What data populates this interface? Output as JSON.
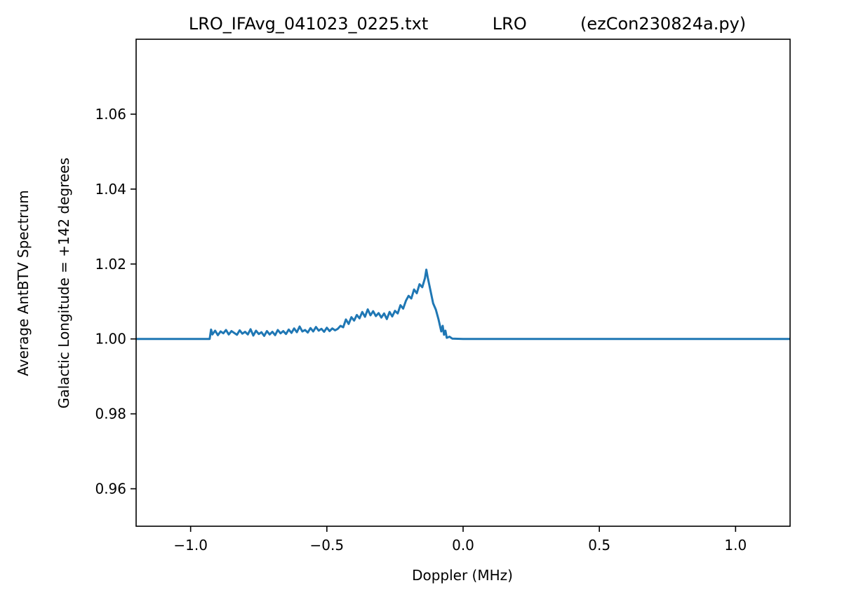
{
  "chart_data": {
    "type": "line",
    "title": "LRO_IFAvg_041023_0225.txt            LRO          (ezCon230824a.py)",
    "xlabel": "Doppler (MHz)",
    "ylabel_outer": "Average AntBTV Spectrum",
    "ylabel_inner": "Galactic Longitude = +142 degrees",
    "xlim": [
      -1.2,
      1.2
    ],
    "ylim": [
      0.95,
      1.08
    ],
    "xticks": [
      {
        "value": -1.0,
        "label": "−1.0"
      },
      {
        "value": -0.5,
        "label": "−0.5"
      },
      {
        "value": 0.0,
        "label": "0.0"
      },
      {
        "value": 0.5,
        "label": "0.5"
      },
      {
        "value": 1.0,
        "label": "1.0"
      }
    ],
    "yticks": [
      {
        "value": 0.96,
        "label": "0.96"
      },
      {
        "value": 0.98,
        "label": "0.98"
      },
      {
        "value": 1.0,
        "label": "1.00"
      },
      {
        "value": 1.02,
        "label": "1.02"
      },
      {
        "value": 1.04,
        "label": "1.04"
      },
      {
        "value": 1.06,
        "label": "1.06"
      }
    ],
    "grid": false,
    "series": [
      {
        "color": "#1f77b4",
        "x": [
          -1.2,
          -0.93,
          -0.925,
          -0.92,
          -0.91,
          -0.9,
          -0.89,
          -0.88,
          -0.87,
          -0.86,
          -0.85,
          -0.84,
          -0.83,
          -0.82,
          -0.81,
          -0.8,
          -0.79,
          -0.78,
          -0.77,
          -0.76,
          -0.75,
          -0.74,
          -0.73,
          -0.72,
          -0.71,
          -0.7,
          -0.69,
          -0.68,
          -0.67,
          -0.66,
          -0.65,
          -0.64,
          -0.63,
          -0.62,
          -0.61,
          -0.6,
          -0.59,
          -0.58,
          -0.57,
          -0.56,
          -0.55,
          -0.54,
          -0.53,
          -0.52,
          -0.51,
          -0.5,
          -0.49,
          -0.48,
          -0.47,
          -0.46,
          -0.45,
          -0.44,
          -0.43,
          -0.42,
          -0.41,
          -0.4,
          -0.39,
          -0.38,
          -0.37,
          -0.36,
          -0.35,
          -0.34,
          -0.33,
          -0.32,
          -0.31,
          -0.3,
          -0.29,
          -0.28,
          -0.27,
          -0.26,
          -0.25,
          -0.24,
          -0.23,
          -0.22,
          -0.21,
          -0.2,
          -0.19,
          -0.18,
          -0.17,
          -0.16,
          -0.15,
          -0.14,
          -0.135,
          -0.13,
          -0.12,
          -0.11,
          -0.1,
          -0.09,
          -0.08,
          -0.075,
          -0.07,
          -0.065,
          -0.06,
          -0.05,
          -0.04,
          0.0,
          1.2
        ],
        "y": [
          1.0,
          1.0,
          1.0025,
          1.0012,
          1.0022,
          1.001,
          1.002,
          1.0015,
          1.0024,
          1.0012,
          1.0021,
          1.0016,
          1.0011,
          1.0023,
          1.0014,
          1.0019,
          1.0012,
          1.0026,
          1.0009,
          1.0022,
          1.0013,
          1.0018,
          1.0008,
          1.0021,
          1.0012,
          1.0019,
          1.001,
          1.0024,
          1.0015,
          1.0021,
          1.0013,
          1.0025,
          1.0016,
          1.0028,
          1.0018,
          1.0033,
          1.002,
          1.0024,
          1.0017,
          1.0029,
          1.002,
          1.0032,
          1.0022,
          1.0027,
          1.0019,
          1.003,
          1.0021,
          1.0028,
          1.0023,
          1.0027,
          1.0035,
          1.0031,
          1.0052,
          1.004,
          1.0058,
          1.0049,
          1.0064,
          1.0055,
          1.0072,
          1.0059,
          1.0079,
          1.0063,
          1.0074,
          1.0061,
          1.0069,
          1.0057,
          1.0068,
          1.0053,
          1.0072,
          1.006,
          1.0075,
          1.0068,
          1.009,
          1.0081,
          1.0102,
          1.0115,
          1.0108,
          1.0132,
          1.0122,
          1.0146,
          1.0138,
          1.0162,
          1.0185,
          1.0165,
          1.013,
          1.0095,
          1.0078,
          1.0052,
          1.002,
          1.0035,
          1.0011,
          1.0022,
          1.0003,
          1.0006,
          1.0001,
          1.0,
          1.0
        ]
      }
    ]
  }
}
